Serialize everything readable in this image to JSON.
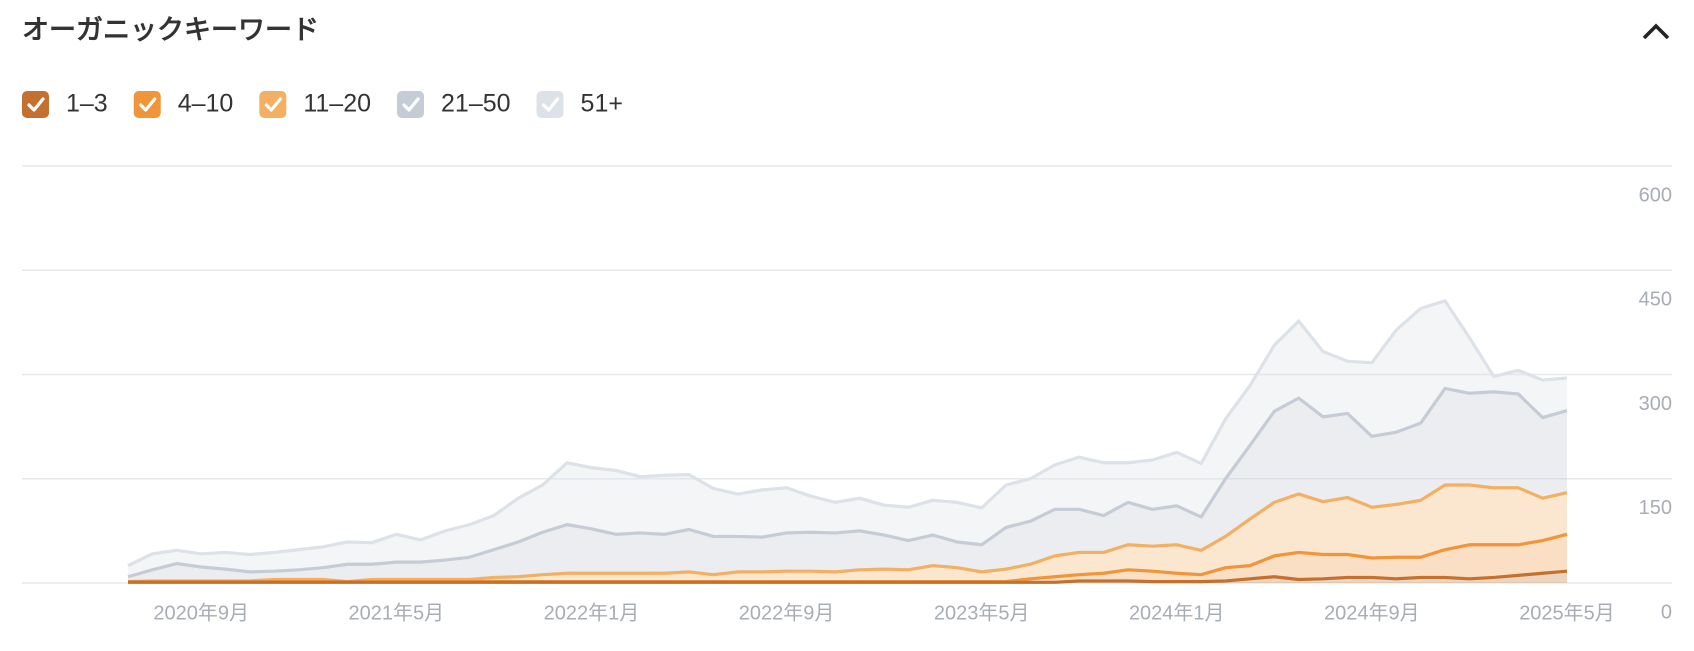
{
  "chart_data": {
    "type": "stacked_area",
    "title": "オーガニックキーワード",
    "categories": [
      null,
      null,
      null,
      "2020年9月",
      null,
      null,
      null,
      null,
      null,
      null,
      null,
      "2021年5月",
      null,
      null,
      null,
      null,
      null,
      null,
      null,
      "2022年1月",
      null,
      null,
      null,
      null,
      null,
      null,
      null,
      "2022年9月",
      null,
      null,
      null,
      null,
      null,
      null,
      null,
      "2023年5月",
      null,
      null,
      null,
      null,
      null,
      null,
      null,
      "2024年1月",
      null,
      null,
      null,
      null,
      null,
      null,
      null,
      "2024年9月",
      null,
      null,
      null,
      null,
      null,
      null,
      null,
      "2025年5月"
    ],
    "series": [
      {
        "name": "1–3",
        "color": "#c4702e",
        "values": [
          1,
          1,
          1,
          1,
          1,
          1,
          1,
          1,
          1,
          1,
          1,
          1,
          1,
          1,
          1,
          1,
          1,
          1,
          1,
          1,
          1,
          1,
          1,
          1,
          1,
          1,
          1,
          1,
          1,
          1,
          1,
          1,
          1,
          1,
          1,
          1,
          1,
          1,
          1,
          3,
          3,
          3,
          2,
          2,
          2,
          3,
          6,
          9,
          5,
          6,
          8,
          8,
          6,
          8,
          8,
          6,
          8,
          11,
          14,
          17
        ]
      },
      {
        "name": "4–10",
        "color": "#f0953a",
        "values": [
          1,
          1,
          1,
          1,
          1,
          1,
          1,
          1,
          1,
          1,
          1,
          1,
          1,
          1,
          1,
          1,
          1,
          1,
          1,
          1,
          1,
          1,
          1,
          1,
          1,
          1,
          1,
          1,
          1,
          1,
          1,
          1,
          1,
          1,
          1,
          1,
          1,
          5,
          8,
          9,
          11,
          16,
          15,
          12,
          10,
          19,
          19,
          30,
          39,
          35,
          33,
          28,
          31,
          29,
          40,
          49,
          47,
          44,
          47,
          53
        ]
      },
      {
        "name": "11–20",
        "color": "#f3b063",
        "values": [
          0,
          1,
          1,
          1,
          1,
          1,
          3,
          3,
          3,
          0,
          3,
          3,
          3,
          3,
          3,
          6,
          7,
          10,
          12,
          12,
          12,
          12,
          12,
          14,
          10,
          14,
          14,
          15,
          15,
          14,
          17,
          18,
          17,
          23,
          20,
          14,
          18,
          21,
          30,
          32,
          30,
          36,
          36,
          41,
          35,
          45,
          67,
          77,
          84,
          76,
          82,
          73,
          76,
          82,
          93,
          86,
          82,
          82,
          61,
          60
        ]
      },
      {
        "name": "21–50",
        "color": "#c6ccd6",
        "values": [
          7,
          16,
          25,
          20,
          17,
          13,
          12,
          14,
          17,
          25,
          22,
          25,
          25,
          28,
          32,
          40,
          50,
          61,
          70,
          64,
          56,
          58,
          56,
          61,
          55,
          51,
          50,
          55,
          56,
          56,
          56,
          49,
          42,
          44,
          37,
          39,
          60,
          62,
          67,
          62,
          53,
          61,
          53,
          56,
          48,
          83,
          106,
          131,
          138,
          122,
          121,
          102,
          104,
          111,
          139,
          132,
          138,
          135,
          116,
          118
        ]
      },
      {
        "name": "51+",
        "color": "#dde1e8",
        "values": [
          16,
          23,
          19,
          19,
          24,
          25,
          27,
          29,
          30,
          32,
          31,
          40,
          32,
          42,
          47,
          49,
          63,
          68,
          89,
          88,
          92,
          81,
          85,
          79,
          69,
          61,
          68,
          65,
          52,
          44,
          47,
          43,
          48,
          50,
          57,
          53,
          61,
          61,
          64,
          75,
          76,
          57,
          71,
          77,
          77,
          86,
          86,
          95,
          111,
          94,
          75,
          106,
          147,
          165,
          126,
          80,
          22,
          34,
          54,
          47
        ]
      }
    ],
    "ylim": [
      0,
      600
    ],
    "yticks": [
      0,
      150,
      300,
      450,
      600
    ],
    "grid": true,
    "y_axis_side": "right"
  }
}
